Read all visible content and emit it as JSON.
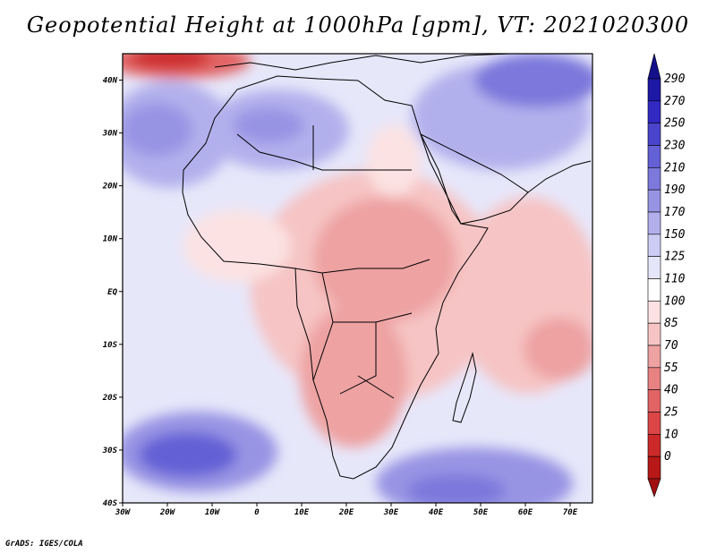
{
  "title": "Geopotential Height at 1000hPa [gpm], VT: 2021020300",
  "credit": "GrADS: IGES/COLA",
  "map": {
    "lon_range": [
      -30,
      75
    ],
    "lat_range": [
      -40,
      45
    ],
    "x_ticks": [
      "30W",
      "20W",
      "10W",
      "0",
      "10E",
      "20E",
      "30E",
      "40E",
      "50E",
      "60E",
      "70E"
    ],
    "x_tick_values": [
      -30,
      -20,
      -10,
      0,
      10,
      20,
      30,
      40,
      50,
      60,
      70
    ],
    "y_ticks": [
      "40N",
      "30N",
      "20N",
      "10N",
      "EQ",
      "10S",
      "20S",
      "30S",
      "40S"
    ],
    "y_tick_values": [
      40,
      30,
      20,
      10,
      0,
      -10,
      -20,
      -30,
      -40
    ]
  },
  "colorbar": {
    "labels": [
      "290",
      "270",
      "250",
      "230",
      "210",
      "190",
      "170",
      "150",
      "125",
      "110",
      "100",
      "85",
      "70",
      "55",
      "40",
      "25",
      "10",
      "0"
    ],
    "colors": [
      "#1e18a6",
      "#3229c2",
      "#4a44cc",
      "#6460d6",
      "#7c78dc",
      "#9894e4",
      "#b2b0ec",
      "#ccccf4",
      "#e6e6fa",
      "#ffffff",
      "#fce2e2",
      "#f6c4c4",
      "#eea2a2",
      "#e88282",
      "#e26464",
      "#dc4646",
      "#cc2a2a",
      "#b81818"
    ],
    "top_arrow_color": "#14108c",
    "bottom_arrow_color": "#a01010"
  }
}
